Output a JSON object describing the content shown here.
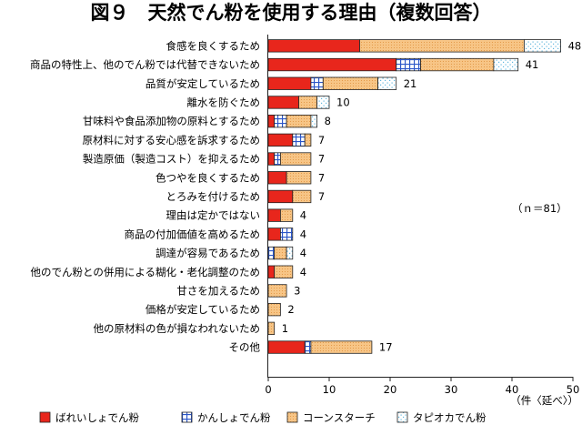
{
  "chart_data": {
    "type": "bar",
    "orientation": "horizontal",
    "stacked": true,
    "title": "図９　天然でん粉を使用する理由（複数回答）",
    "note": "（ｎ＝81）",
    "x_unit": "（件〈延べ〉）",
    "xlim": [
      0,
      50
    ],
    "xticks": [
      0,
      10,
      20,
      30,
      40,
      50
    ],
    "grid": false,
    "legend_position": "bottom",
    "categories": [
      "食感を良くするため",
      "商品の特性上、他のでん粉では代替できないため",
      "品質が安定しているため",
      "離水を防ぐため",
      "甘味料や食品添加物の原料とするため",
      "原材料に対する安心感を訴求するため",
      "製造原価（製造コスト）を抑えるため",
      "色つやを良くするため",
      "とろみを付けるため",
      "理由は定かではない",
      "商品の付加価値を高めるため",
      "調達が容易であるため",
      "他のでん粉との併用による糊化・老化調整のため",
      "甘さを加えるため",
      "価格が安定しているため",
      "他の原材料の色が損なわれないため",
      "その他"
    ],
    "totals": [
      48,
      41,
      21,
      10,
      8,
      7,
      7,
      7,
      7,
      4,
      4,
      4,
      4,
      3,
      2,
      1,
      17
    ],
    "series": [
      {
        "name": "ばれいしょでん粉",
        "color": "#e8261c",
        "pattern": "solid",
        "values": [
          15,
          21,
          7,
          5,
          1,
          4,
          1,
          3,
          4,
          2,
          2,
          0,
          1,
          0,
          0,
          0,
          6
        ]
      },
      {
        "name": "かんしょでん粉",
        "color": "#2b56c8",
        "pattern": "grid",
        "values": [
          0,
          4,
          2,
          0,
          2,
          2,
          1,
          0,
          0,
          0,
          2,
          1,
          0,
          0,
          0,
          0,
          1
        ]
      },
      {
        "name": "コーンスターチ",
        "color": "#f7c586",
        "pattern": "dots",
        "values": [
          27,
          12,
          9,
          3,
          4,
          1,
          5,
          4,
          3,
          2,
          0,
          2,
          3,
          3,
          2,
          1,
          10
        ]
      },
      {
        "name": "タピオカでん粉",
        "color": "#5fb6de",
        "pattern": "speckle",
        "values": [
          6,
          4,
          3,
          2,
          1,
          0,
          0,
          0,
          0,
          0,
          0,
          1,
          0,
          0,
          0,
          0,
          0
        ]
      }
    ]
  }
}
